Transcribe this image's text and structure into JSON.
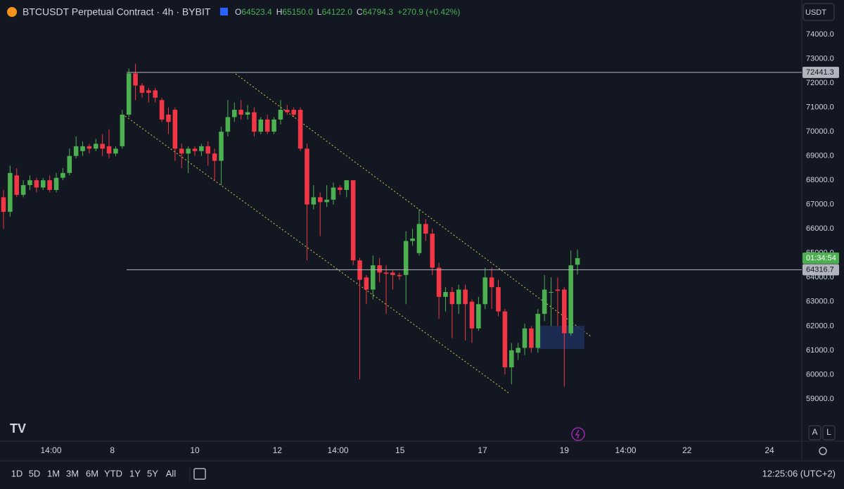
{
  "header": {
    "symbol": "BTCUSDT Perpetual Contract · 4h · BYBIT",
    "ohlc": [
      {
        "key": "O",
        "value": "64523.4"
      },
      {
        "key": "H",
        "value": "65150.0"
      },
      {
        "key": "L",
        "value": "64122.0"
      },
      {
        "key": "C",
        "value": "64794.3"
      }
    ],
    "change": "+270.9 (+0.42%)"
  },
  "currency": "USDT",
  "scale_buttons": [
    "A",
    "L"
  ],
  "toolbar": {
    "ranges": [
      "1D",
      "5D",
      "1M",
      "3M",
      "6M",
      "YTD",
      "1Y",
      "5Y",
      "All"
    ],
    "clock": "12:25:06 (UTC+2)"
  },
  "chart_data": {
    "type": "candlestick",
    "up_color": "#4caf50",
    "down_color": "#f23645",
    "grid": false,
    "open": [
      67300,
      66700,
      68200,
      67400,
      67800,
      68000,
      67700,
      68000,
      67600,
      68100,
      68300,
      69000,
      69200,
      69400,
      69300,
      69500,
      69400,
      69100,
      69400,
      70700,
      72400,
      71900,
      71700,
      71700,
      71300,
      70700,
      70900,
      69300,
      69100,
      69300,
      69200,
      69400,
      69100,
      68800,
      70000,
      70600,
      70900,
      70700,
      70800,
      70000,
      70500,
      70000,
      70500,
      70900,
      70900,
      70900,
      69300,
      67000,
      67300,
      67100,
      67200,
      67700,
      67600,
      68000,
      64700,
      64000,
      63500,
      64500,
      64200,
      64200,
      64100,
      64100,
      65500,
      65000,
      66200,
      65800,
      64400,
      63200,
      63400,
      62900,
      63500,
      63000,
      61900,
      62900,
      64000,
      63600,
      62600,
      60300,
      60900,
      61100,
      61900,
      61100,
      62500,
      63400,
      63500,
      63500,
      61700,
      64523.4
    ],
    "high": [
      67600,
      68600,
      68500,
      68000,
      68200,
      68100,
      68100,
      68200,
      68300,
      68500,
      69300,
      69800,
      69600,
      69500,
      69700,
      69900,
      70100,
      69400,
      70900,
      72600,
      72800,
      72000,
      71800,
      71800,
      71400,
      71000,
      71000,
      69500,
      69400,
      69400,
      69500,
      69600,
      69300,
      70200,
      71300,
      71200,
      71300,
      71100,
      71000,
      70600,
      70700,
      70600,
      71300,
      71100,
      71000,
      71000,
      69500,
      67800,
      67500,
      67800,
      67900,
      67800,
      68000,
      68000,
      64800,
      64100,
      64900,
      64800,
      64500,
      64300,
      64200,
      65900,
      66000,
      66800,
      66400,
      66000,
      64600,
      63600,
      63600,
      63700,
      63700,
      63100,
      63200,
      64400,
      64400,
      63900,
      62700,
      61300,
      61300,
      62100,
      62000,
      62700,
      64100,
      64000,
      64000,
      63600,
      65100,
      65150
    ],
    "low": [
      66000,
      66500,
      67300,
      67300,
      67600,
      67500,
      67600,
      67500,
      67500,
      68000,
      68200,
      68900,
      69000,
      69100,
      69200,
      69000,
      68900,
      69000,
      69300,
      70600,
      71300,
      71400,
      71200,
      71200,
      70400,
      69900,
      68800,
      68500,
      68300,
      69000,
      69000,
      68600,
      68000,
      67800,
      69800,
      70400,
      70500,
      70500,
      69800,
      69900,
      69900,
      69900,
      70300,
      70700,
      70600,
      69200,
      64700,
      66800,
      65700,
      66900,
      67000,
      67400,
      67300,
      64500,
      59800,
      62900,
      63100,
      63800,
      62500,
      63500,
      63900,
      62900,
      65300,
      64900,
      65500,
      64100,
      62300,
      62600,
      61500,
      62500,
      61400,
      61300,
      61800,
      62700,
      62700,
      62400,
      60000,
      59600,
      60600,
      60800,
      60900,
      60900,
      62200,
      62000,
      62000,
      59500,
      61600,
      64122
    ],
    "close": [
      66700,
      68300,
      67400,
      67800,
      68000,
      67700,
      68000,
      67600,
      68100,
      68300,
      69000,
      69400,
      69400,
      69300,
      69500,
      69300,
      69100,
      69300,
      70700,
      72400,
      71900,
      71600,
      71600,
      71400,
      70500,
      70400,
      69300,
      69100,
      69300,
      69200,
      69400,
      69100,
      68800,
      70000,
      70600,
      70900,
      70700,
      70800,
      70000,
      70500,
      70000,
      70500,
      70900,
      70800,
      70700,
      69300,
      67000,
      67300,
      67100,
      67200,
      67700,
      67600,
      68000,
      64700,
      63900,
      63500,
      64500,
      64200,
      64150,
      64100,
      64050,
      65500,
      65600,
      66200,
      65800,
      64400,
      63200,
      63400,
      62900,
      63500,
      62900,
      61900,
      62900,
      64000,
      63600,
      62600,
      60300,
      61000,
      61100,
      61900,
      61100,
      62500,
      63500,
      63400,
      63450,
      61700,
      64500,
      64794.3
    ],
    "xlim": [
      -0.53,
      121
    ],
    "xticks": [
      {
        "value": 7.2,
        "label": "14:00"
      },
      {
        "value": 16.5,
        "label": "8"
      },
      {
        "value": 29,
        "label": "10"
      },
      {
        "value": 41.5,
        "label": "12"
      },
      {
        "value": 50.7,
        "label": "14:00"
      },
      {
        "value": 60.1,
        "label": "15"
      },
      {
        "value": 72.6,
        "label": "17"
      },
      {
        "value": 85,
        "label": "19"
      },
      {
        "value": 94.3,
        "label": "14:00"
      },
      {
        "value": 103.6,
        "label": "22"
      },
      {
        "value": 116.1,
        "label": "24"
      }
    ],
    "ylim": [
      57260,
      75420
    ],
    "yticks": [
      {
        "value": 59000,
        "label": "59000.0"
      },
      {
        "value": 60000,
        "label": "60000.0"
      },
      {
        "value": 61000,
        "label": "61000.0"
      },
      {
        "value": 62000,
        "label": "62000.0"
      },
      {
        "value": 63000,
        "label": "63000.0"
      },
      {
        "value": 64000,
        "label": "64000.0"
      },
      {
        "value": 65000,
        "label": "65000.0"
      },
      {
        "value": 66000,
        "label": "66000.0"
      },
      {
        "value": 67000,
        "label": "67000.0"
      },
      {
        "value": 68000,
        "label": "68000.0"
      },
      {
        "value": 69000,
        "label": "69000.0"
      },
      {
        "value": 70000,
        "label": "70000.0"
      },
      {
        "value": 71000,
        "label": "71000.0"
      },
      {
        "value": 72000,
        "label": "72000.0"
      },
      {
        "value": 73000,
        "label": "73000.0"
      },
      {
        "value": 74000,
        "label": "74000.0"
      }
    ],
    "price_lines": [
      72441.3,
      64316.7
    ],
    "countdown": "01:34:54"
  }
}
